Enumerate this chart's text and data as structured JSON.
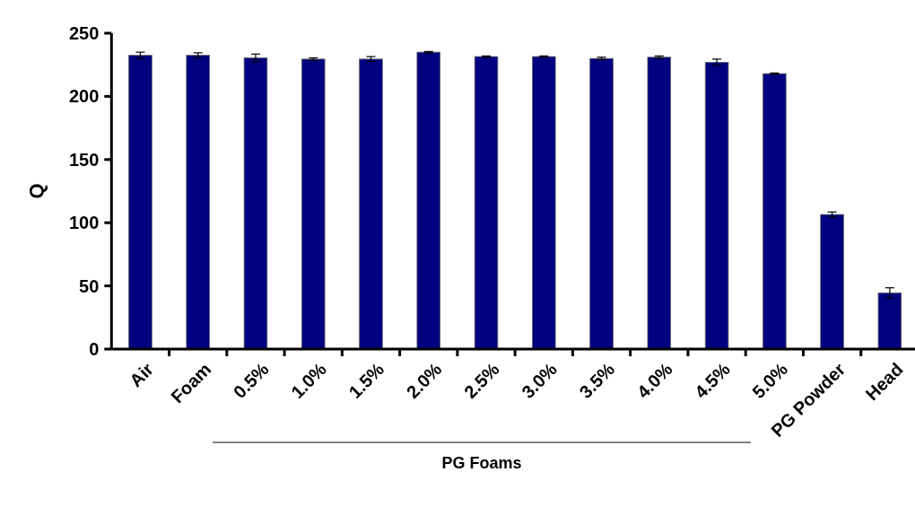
{
  "chart_data": {
    "type": "bar",
    "ylabel": "Q",
    "categories": [
      "Air",
      "Foam",
      "0.5%",
      "1.0%",
      "1.5%",
      "2.0%",
      "2.5%",
      "3.0%",
      "3.5%",
      "4.0%",
      "4.5%",
      "5.0%",
      "PG Powder",
      "Head"
    ],
    "values": [
      232.5,
      232.5,
      230.5,
      229.5,
      229.5,
      235,
      231.5,
      231.5,
      230,
      231,
      227,
      218,
      106.5,
      44.5
    ],
    "errors": [
      2.5,
      2,
      3,
      1,
      2,
      0.5,
      0.5,
      0.5,
      1,
      1,
      2.5,
      0.5,
      2,
      4
    ],
    "color": "#000080",
    "ylim": [
      0,
      250
    ],
    "yticks": [
      0,
      50,
      100,
      150,
      200,
      250
    ],
    "annotations": [
      "PG Foams"
    ]
  }
}
